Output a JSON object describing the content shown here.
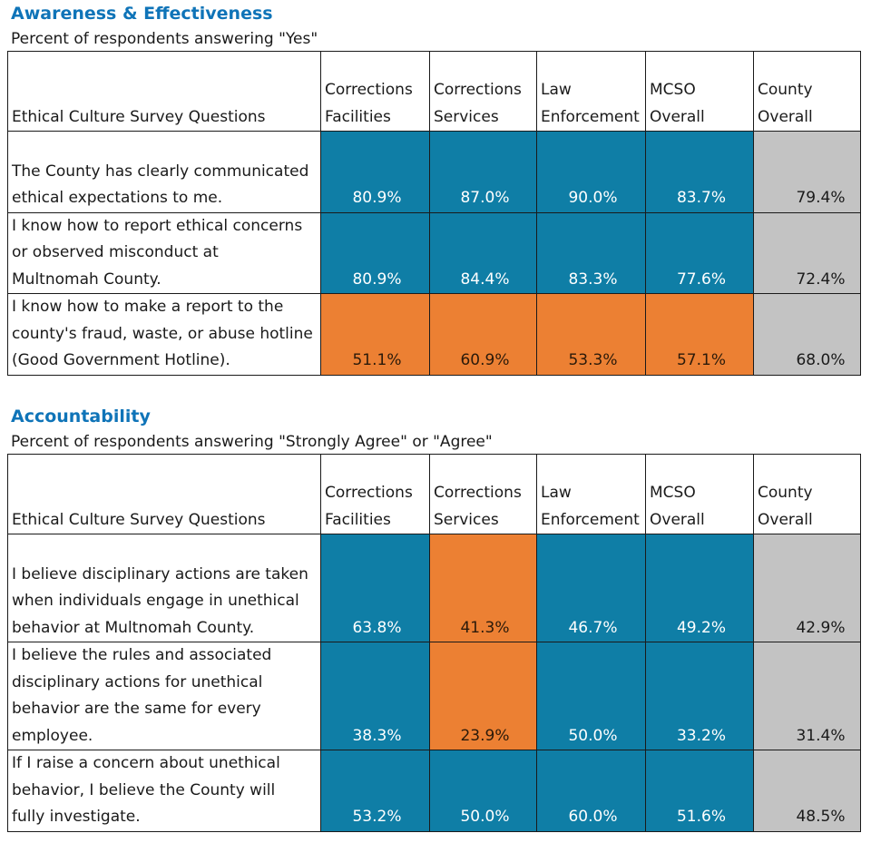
{
  "sections": [
    {
      "title": "Awareness & Effectiveness",
      "subtitle": "Percent of respondents answering \"Yes\"",
      "header": {
        "question_label": "Ethical Culture Survey Questions",
        "columns": [
          [
            "Corrections",
            "Facilities"
          ],
          [
            "Corrections",
            "Services"
          ],
          [
            "Law",
            "Enforcement"
          ],
          [
            "MCSO",
            "Overall"
          ],
          [
            "County",
            "Overall"
          ]
        ]
      },
      "rows": [
        {
          "question_lines": [
            "",
            "The County has clearly communicated",
            "ethical expectations to me."
          ],
          "values": [
            "80.9%",
            "87.0%",
            "90.0%",
            "83.7%",
            "79.4%"
          ],
          "colors": [
            "blue",
            "blue",
            "blue",
            "blue",
            "gray"
          ]
        },
        {
          "question_lines": [
            "I know how to report ethical concerns",
            "or observed misconduct at",
            "Multnomah County."
          ],
          "values": [
            "80.9%",
            "84.4%",
            "83.3%",
            "77.6%",
            "72.4%"
          ],
          "colors": [
            "blue",
            "blue",
            "blue",
            "blue",
            "gray"
          ]
        },
        {
          "question_lines": [
            "I know how to make a report to the",
            "county's fraud, waste, or abuse hotline",
            "(Good Government Hotline)."
          ],
          "values": [
            "51.1%",
            "60.9%",
            "53.3%",
            "57.1%",
            "68.0%"
          ],
          "colors": [
            "orange",
            "orange",
            "orange",
            "orange",
            "gray"
          ]
        }
      ]
    },
    {
      "title": "Accountability",
      "subtitle": "Percent of respondents answering \"Strongly Agree\" or \"Agree\"",
      "header": {
        "question_label": "Ethical Culture Survey Questions",
        "columns": [
          [
            "Corrections",
            "Facilities"
          ],
          [
            "Corrections",
            "Services"
          ],
          [
            "Law",
            "Enforcement"
          ],
          [
            "MCSO",
            "Overall"
          ],
          [
            "County",
            "Overall"
          ]
        ]
      },
      "rows": [
        {
          "question_lines": [
            "",
            "I believe disciplinary actions are taken",
            "when individuals engage in unethical",
            "behavior at Multnomah County."
          ],
          "values": [
            "63.8%",
            "41.3%",
            "46.7%",
            "49.2%",
            "42.9%"
          ],
          "colors": [
            "blue",
            "orange",
            "blue",
            "blue",
            "gray"
          ]
        },
        {
          "question_lines": [
            "I believe the rules and associated",
            "disciplinary actions for unethical",
            "behavior are the same for every",
            "employee."
          ],
          "values": [
            "38.3%",
            "23.9%",
            "50.0%",
            "33.2%",
            "31.4%"
          ],
          "colors": [
            "blue",
            "orange",
            "blue",
            "blue",
            "gray"
          ]
        },
        {
          "question_lines": [
            "If I raise a concern about unethical",
            "behavior, I believe the County will",
            "fully investigate."
          ],
          "values": [
            "53.2%",
            "50.0%",
            "60.0%",
            "51.6%",
            "48.5%"
          ],
          "colors": [
            "blue",
            "blue",
            "blue",
            "blue",
            "gray"
          ]
        }
      ]
    }
  ]
}
